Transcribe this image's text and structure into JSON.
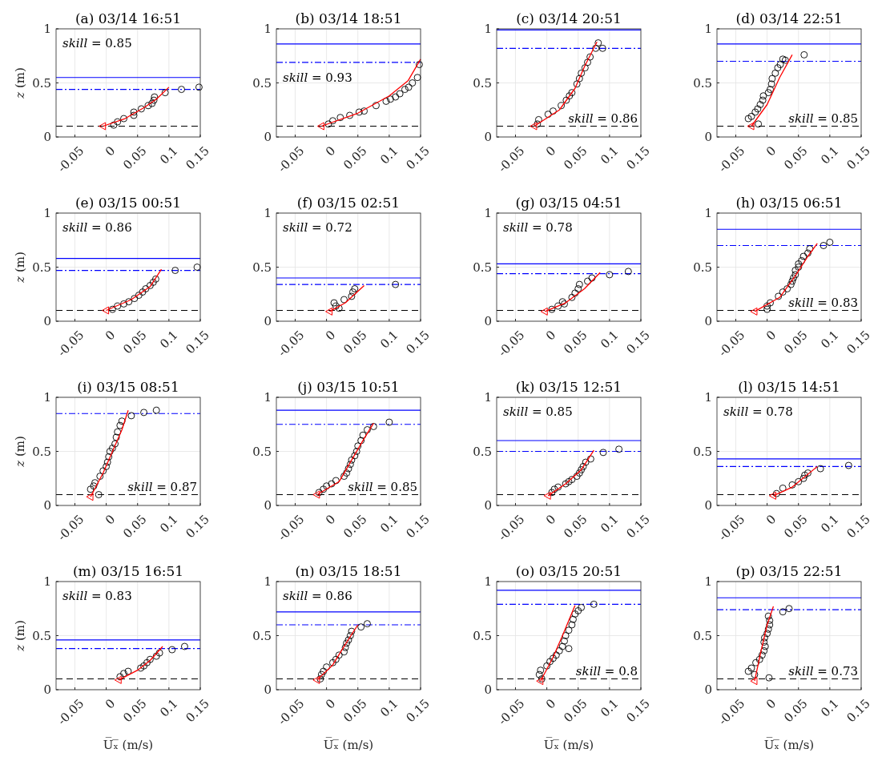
{
  "chart_data": [
    {
      "type": "scatter",
      "title": "(a) 03/14 16:51",
      "ylabel": "z (m)",
      "xlim": [
        -0.08,
        0.15
      ],
      "xticks": [
        -0.05,
        0,
        0.05,
        0.1,
        0.15
      ],
      "ylim": [
        0,
        1
      ],
      "yticks": [
        0,
        0.5,
        1
      ],
      "grid": true,
      "annotations": [
        "skill = 0.85"
      ],
      "ref_lines": [
        {
          "axis": "y",
          "value": 0.55,
          "color": "#0000ff",
          "line_style": "solid"
        },
        {
          "axis": "y",
          "value": 0.44,
          "color": "#0000ff",
          "line_style": "dashdot"
        },
        {
          "axis": "y",
          "value": 0.1,
          "color": "#000000",
          "line_style": "dashed"
        }
      ],
      "series": [
        {
          "type": "scatter",
          "marker": "circle",
          "color": "#000000",
          "x": [
            0.012,
            0.018,
            0.028,
            0.044,
            0.044,
            0.056,
            0.067,
            0.073,
            0.076,
            0.077,
            0.094,
            0.12,
            0.148
          ],
          "values": [
            0.11,
            0.14,
            0.17,
            0.2,
            0.23,
            0.26,
            0.29,
            0.31,
            0.34,
            0.37,
            0.41,
            0.44,
            0.46
          ]
        },
        {
          "type": "line",
          "color": "#ff0000",
          "x": [
            -0.005,
            0.03,
            0.06,
            0.08,
            0.1
          ],
          "values": [
            0.1,
            0.17,
            0.27,
            0.35,
            0.46
          ]
        },
        {
          "type": "scatter",
          "marker": "triangle",
          "color": "#ff0000",
          "x": [
            -0.005
          ],
          "values": [
            0.1
          ]
        }
      ]
    },
    {
      "type": "scatter",
      "title": "(b) 03/14 18:51",
      "xlim": [
        -0.08,
        0.15
      ],
      "xticks": [
        -0.05,
        0,
        0.05,
        0.1,
        0.15
      ],
      "ylim": [
        0,
        1
      ],
      "yticks": [
        0,
        0.5,
        1
      ],
      "grid": true,
      "annotations": [
        "skill = 0.93"
      ],
      "ref_lines": [
        {
          "axis": "y",
          "value": 0.86,
          "color": "#0000ff",
          "line_style": "solid"
        },
        {
          "axis": "y",
          "value": 0.69,
          "color": "#0000ff",
          "line_style": "dashdot"
        },
        {
          "axis": "y",
          "value": 0.1,
          "color": "#000000",
          "line_style": "dashed"
        }
      ],
      "series": [
        {
          "type": "scatter",
          "marker": "circle",
          "color": "#000000",
          "x": [
            0.003,
            0.01,
            0.022,
            0.037,
            0.052,
            0.06,
            0.079,
            0.095,
            0.102,
            0.11,
            0.117,
            0.125,
            0.131,
            0.137,
            0.145,
            0.148
          ],
          "values": [
            0.12,
            0.15,
            0.18,
            0.2,
            0.23,
            0.24,
            0.29,
            0.33,
            0.35,
            0.37,
            0.4,
            0.44,
            0.46,
            0.5,
            0.55,
            0.67
          ]
        },
        {
          "type": "line",
          "color": "#ff0000",
          "x": [
            -0.008,
            0.05,
            0.1,
            0.13,
            0.15
          ],
          "values": [
            0.1,
            0.22,
            0.38,
            0.52,
            0.72
          ]
        },
        {
          "type": "scatter",
          "marker": "triangle",
          "color": "#ff0000",
          "x": [
            -0.008
          ],
          "values": [
            0.1
          ]
        }
      ]
    },
    {
      "type": "scatter",
      "title": "(c) 03/14 20:51",
      "xlim": [
        -0.08,
        0.15
      ],
      "xticks": [
        -0.05,
        0,
        0.05,
        0.1,
        0.15
      ],
      "ylim": [
        0,
        1
      ],
      "yticks": [
        0,
        0.5,
        1
      ],
      "grid": true,
      "annotations": [
        "skill = 0.86"
      ],
      "ref_lines": [
        {
          "axis": "y",
          "value": 0.99,
          "color": "#0000ff",
          "line_style": "solid"
        },
        {
          "axis": "y",
          "value": 0.82,
          "color": "#0000ff",
          "line_style": "dashdot"
        },
        {
          "axis": "y",
          "value": 0.1,
          "color": "#000000",
          "line_style": "dashed"
        }
      ],
      "series": [
        {
          "type": "scatter",
          "marker": "circle",
          "color": "#000000",
          "x": [
            -0.015,
            -0.013,
            0.002,
            0.01,
            0.023,
            0.031,
            0.036,
            0.04,
            0.048,
            0.052,
            0.055,
            0.061,
            0.065,
            0.069,
            0.078,
            0.082,
            0.089
          ],
          "values": [
            0.12,
            0.16,
            0.21,
            0.24,
            0.29,
            0.34,
            0.38,
            0.41,
            0.49,
            0.54,
            0.59,
            0.64,
            0.69,
            0.74,
            0.82,
            0.87,
            0.82
          ]
        },
        {
          "type": "line",
          "color": "#ff0000",
          "x": [
            -0.02,
            0.02,
            0.045,
            0.06,
            0.08
          ],
          "values": [
            0.1,
            0.25,
            0.45,
            0.65,
            0.88
          ]
        },
        {
          "type": "scatter",
          "marker": "triangle",
          "color": "#ff0000",
          "x": [
            -0.02
          ],
          "values": [
            0.1
          ]
        }
      ]
    },
    {
      "type": "scatter",
      "title": "(d) 03/14 22:51",
      "xlim": [
        -0.08,
        0.15
      ],
      "xticks": [
        -0.05,
        0,
        0.05,
        0.1,
        0.15
      ],
      "ylim": [
        0,
        1
      ],
      "yticks": [
        0,
        0.5,
        1
      ],
      "grid": true,
      "annotations": [
        "skill = 0.85"
      ],
      "ref_lines": [
        {
          "axis": "y",
          "value": 0.86,
          "color": "#0000ff",
          "line_style": "solid"
        },
        {
          "axis": "y",
          "value": 0.7,
          "color": "#0000ff",
          "line_style": "dashdot"
        },
        {
          "axis": "y",
          "value": 0.1,
          "color": "#000000",
          "line_style": "dashed"
        }
      ],
      "series": [
        {
          "type": "scatter",
          "marker": "circle",
          "color": "#000000",
          "x": [
            -0.03,
            -0.025,
            -0.019,
            -0.015,
            -0.011,
            -0.007,
            -0.006,
            0.002,
            0.005,
            0.007,
            0.008,
            0.013,
            0.017,
            0.021,
            0.025,
            0.029,
            0.059,
            -0.014
          ],
          "values": [
            0.17,
            0.19,
            0.23,
            0.26,
            0.3,
            0.34,
            0.38,
            0.41,
            0.44,
            0.49,
            0.54,
            0.59,
            0.64,
            0.67,
            0.72,
            0.71,
            0.76,
            0.12
          ]
        },
        {
          "type": "line",
          "color": "#ff0000",
          "x": [
            -0.025,
            0,
            0.02,
            0.04
          ],
          "values": [
            0.1,
            0.3,
            0.55,
            0.76
          ]
        },
        {
          "type": "scatter",
          "marker": "triangle",
          "color": "#ff0000",
          "x": [
            -0.025
          ],
          "values": [
            0.1
          ]
        }
      ]
    },
    {
      "type": "scatter",
      "title": "(e) 03/15 00:51",
      "ylabel": "z (m)",
      "xlim": [
        -0.08,
        0.15
      ],
      "xticks": [
        -0.05,
        0,
        0.05,
        0.1,
        0.15
      ],
      "ylim": [
        0,
        1
      ],
      "yticks": [
        0,
        0.5,
        1
      ],
      "grid": true,
      "annotations": [
        "skill = 0.86"
      ],
      "ref_lines": [
        {
          "axis": "y",
          "value": 0.58,
          "color": "#0000ff",
          "line_style": "solid"
        },
        {
          "axis": "y",
          "value": 0.47,
          "color": "#0000ff",
          "line_style": "dashdot"
        },
        {
          "axis": "y",
          "value": 0.1,
          "color": "#000000",
          "line_style": "dashed"
        }
      ],
      "series": [
        {
          "type": "scatter",
          "marker": "circle",
          "color": "#000000",
          "x": [
            0.01,
            0.018,
            0.028,
            0.036,
            0.045,
            0.052,
            0.058,
            0.063,
            0.07,
            0.075,
            0.079,
            0.11,
            0.145
          ],
          "values": [
            0.11,
            0.14,
            0.16,
            0.18,
            0.21,
            0.24,
            0.27,
            0.3,
            0.33,
            0.36,
            0.39,
            0.47,
            0.5
          ]
        },
        {
          "type": "line",
          "color": "#ff0000",
          "x": [
            0,
            0.04,
            0.07,
            0.088
          ],
          "values": [
            0.1,
            0.2,
            0.32,
            0.48
          ]
        },
        {
          "type": "scatter",
          "marker": "triangle",
          "color": "#ff0000",
          "x": [
            0
          ],
          "values": [
            0.1
          ]
        }
      ]
    },
    {
      "type": "scatter",
      "title": "(f) 03/15 02:51",
      "xlim": [
        -0.08,
        0.15
      ],
      "xticks": [
        -0.05,
        0,
        0.05,
        0.1,
        0.15
      ],
      "ylim": [
        0,
        1
      ],
      "yticks": [
        0,
        0.5,
        1
      ],
      "grid": true,
      "annotations": [
        "skill = 0.72"
      ],
      "ref_lines": [
        {
          "axis": "y",
          "value": 0.4,
          "color": "#0000ff",
          "line_style": "solid"
        },
        {
          "axis": "y",
          "value": 0.34,
          "color": "#0000ff",
          "line_style": "dashdot"
        },
        {
          "axis": "y",
          "value": 0.1,
          "color": "#000000",
          "line_style": "dashed"
        }
      ],
      "series": [
        {
          "type": "scatter",
          "marker": "circle",
          "color": "#000000",
          "x": [
            0.012,
            0.015,
            0.02,
            0.028,
            0.04,
            0.042,
            0.045,
            0.11
          ],
          "values": [
            0.17,
            0.14,
            0.12,
            0.2,
            0.23,
            0.27,
            0.3,
            0.34
          ]
        },
        {
          "type": "line",
          "color": "#ff0000",
          "x": [
            0.005,
            0.03,
            0.06
          ],
          "values": [
            0.09,
            0.17,
            0.33
          ]
        },
        {
          "type": "scatter",
          "marker": "triangle",
          "color": "#ff0000",
          "x": [
            0.005
          ],
          "values": [
            0.09
          ]
        }
      ]
    },
    {
      "type": "scatter",
      "title": "(g) 03/15 04:51",
      "xlim": [
        -0.08,
        0.15
      ],
      "xticks": [
        -0.05,
        0,
        0.05,
        0.1,
        0.15
      ],
      "ylim": [
        0,
        1
      ],
      "yticks": [
        0,
        0.5,
        1
      ],
      "grid": true,
      "annotations": [
        "skill = 0.78"
      ],
      "ref_lines": [
        {
          "axis": "y",
          "value": 0.53,
          "color": "#0000ff",
          "line_style": "solid"
        },
        {
          "axis": "y",
          "value": 0.44,
          "color": "#0000ff",
          "line_style": "dashdot"
        },
        {
          "axis": "y",
          "value": 0.1,
          "color": "#000000",
          "line_style": "dashed"
        }
      ],
      "series": [
        {
          "type": "scatter",
          "marker": "circle",
          "color": "#000000",
          "x": [
            0.008,
            0.018,
            0.025,
            0.028,
            0.04,
            0.045,
            0.05,
            0.052,
            0.065,
            0.072,
            0.1,
            0.13
          ],
          "values": [
            0.11,
            0.14,
            0.18,
            0.16,
            0.22,
            0.26,
            0.3,
            0.34,
            0.37,
            0.4,
            0.43,
            0.46
          ]
        },
        {
          "type": "line",
          "color": "#ff0000",
          "x": [
            -0.003,
            0.03,
            0.06,
            0.085
          ],
          "values": [
            0.09,
            0.17,
            0.3,
            0.45
          ]
        },
        {
          "type": "scatter",
          "marker": "triangle",
          "color": "#ff0000",
          "x": [
            -0.003
          ],
          "values": [
            0.09
          ]
        }
      ]
    },
    {
      "type": "scatter",
      "title": "(h) 03/15 06:51",
      "xlim": [
        -0.08,
        0.15
      ],
      "xticks": [
        -0.05,
        0,
        0.05,
        0.1,
        0.15
      ],
      "ylim": [
        0,
        1
      ],
      "yticks": [
        0,
        0.5,
        1
      ],
      "grid": true,
      "annotations": [
        "skill = 0.83"
      ],
      "ref_lines": [
        {
          "axis": "y",
          "value": 0.85,
          "color": "#0000ff",
          "line_style": "solid"
        },
        {
          "axis": "y",
          "value": 0.7,
          "color": "#0000ff",
          "line_style": "dashdot"
        },
        {
          "axis": "y",
          "value": 0.1,
          "color": "#000000",
          "line_style": "dashed"
        }
      ],
      "series": [
        {
          "type": "scatter",
          "marker": "circle",
          "color": "#000000",
          "x": [
            0,
            0,
            0.005,
            0.018,
            0.025,
            0.032,
            0.038,
            0.04,
            0.042,
            0.045,
            0.045,
            0.05,
            0.05,
            0.055,
            0.058,
            0.065,
            0.068,
            0.09,
            0.1
          ],
          "values": [
            0.11,
            0.14,
            0.17,
            0.23,
            0.27,
            0.3,
            0.34,
            0.37,
            0.4,
            0.43,
            0.47,
            0.5,
            0.53,
            0.56,
            0.6,
            0.63,
            0.67,
            0.7,
            0.73
          ]
        },
        {
          "type": "line",
          "color": "#ff0000",
          "x": [
            -0.02,
            0.02,
            0.045,
            0.065,
            0.08
          ],
          "values": [
            0.09,
            0.22,
            0.42,
            0.6,
            0.72
          ]
        },
        {
          "type": "scatter",
          "marker": "triangle",
          "color": "#ff0000",
          "x": [
            -0.02
          ],
          "values": [
            0.09
          ]
        }
      ]
    },
    {
      "type": "scatter",
      "title": "(i) 03/15 08:51",
      "ylabel": "z (m)",
      "xlim": [
        -0.08,
        0.15
      ],
      "xticks": [
        -0.05,
        0,
        0.05,
        0.1,
        0.15
      ],
      "ylim": [
        0,
        1
      ],
      "yticks": [
        0,
        0.5,
        1
      ],
      "grid": true,
      "annotations": [
        "skill = 0.87"
      ],
      "ref_lines": [
        {
          "axis": "y",
          "value": 0.85,
          "color": "#0000ff",
          "line_style": "dashdot"
        },
        {
          "axis": "y",
          "value": 0.1,
          "color": "#000000",
          "line_style": "dashed"
        }
      ],
      "series": [
        {
          "type": "scatter",
          "marker": "circle",
          "color": "#000000",
          "x": [
            -0.025,
            -0.02,
            -0.018,
            -0.012,
            -0.01,
            -0.005,
            0,
            0.002,
            0.004,
            0.006,
            0.01,
            0.014,
            0.016,
            0.018,
            0.022,
            0.025,
            0.04,
            0.06,
            0.08
          ],
          "values": [
            0.15,
            0.18,
            0.21,
            0.1,
            0.27,
            0.32,
            0.36,
            0.4,
            0.45,
            0.5,
            0.53,
            0.57,
            0.63,
            0.68,
            0.74,
            0.78,
            0.83,
            0.86,
            0.88
          ]
        },
        {
          "type": "line",
          "color": "#ff0000",
          "x": [
            -0.025,
            -0.005,
            0.01,
            0.025,
            0.035
          ],
          "values": [
            0.08,
            0.3,
            0.5,
            0.7,
            0.88
          ]
        },
        {
          "type": "scatter",
          "marker": "triangle",
          "color": "#ff0000",
          "x": [
            -0.025
          ],
          "values": [
            0.08
          ]
        }
      ]
    },
    {
      "type": "scatter",
      "title": "(j) 03/15 10:51",
      "xlim": [
        -0.08,
        0.15
      ],
      "xticks": [
        -0.05,
        0,
        0.05,
        0.1,
        0.15
      ],
      "ylim": [
        0,
        1
      ],
      "yticks": [
        0,
        0.5,
        1
      ],
      "grid": true,
      "annotations": [
        "skill = 0.85"
      ],
      "ref_lines": [
        {
          "axis": "y",
          "value": 0.88,
          "color": "#0000ff",
          "line_style": "solid"
        },
        {
          "axis": "y",
          "value": 0.75,
          "color": "#0000ff",
          "line_style": "dashdot"
        },
        {
          "axis": "y",
          "value": 0.1,
          "color": "#000000",
          "line_style": "dashed"
        }
      ],
      "series": [
        {
          "type": "scatter",
          "marker": "circle",
          "color": "#000000",
          "x": [
            -0.012,
            -0.005,
            0,
            0.008,
            0.015,
            0.028,
            0.032,
            0.035,
            0.038,
            0.04,
            0.045,
            0.048,
            0.05,
            0.055,
            0.058,
            0.065,
            0.075,
            0.1
          ],
          "values": [
            0.12,
            0.15,
            0.18,
            0.2,
            0.23,
            0.27,
            0.3,
            0.34,
            0.38,
            0.42,
            0.46,
            0.5,
            0.55,
            0.6,
            0.65,
            0.7,
            0.73,
            0.77
          ]
        },
        {
          "type": "line",
          "color": "#ff0000",
          "x": [
            -0.015,
            0.02,
            0.04,
            0.06,
            0.075
          ],
          "values": [
            0.1,
            0.22,
            0.42,
            0.62,
            0.76
          ]
        },
        {
          "type": "scatter",
          "marker": "triangle",
          "color": "#ff0000",
          "x": [
            -0.015
          ],
          "values": [
            0.1
          ]
        }
      ]
    },
    {
      "type": "scatter",
      "title": "(k) 03/15 12:51",
      "xlim": [
        -0.08,
        0.15
      ],
      "xticks": [
        -0.05,
        0,
        0.05,
        0.1,
        0.15
      ],
      "ylim": [
        0,
        1
      ],
      "yticks": [
        0,
        0.5,
        1
      ],
      "grid": true,
      "annotations": [
        "skill = 0.85"
      ],
      "ref_lines": [
        {
          "axis": "y",
          "value": 0.6,
          "color": "#0000ff",
          "line_style": "solid"
        },
        {
          "axis": "y",
          "value": 0.5,
          "color": "#0000ff",
          "line_style": "dashdot"
        },
        {
          "axis": "y",
          "value": 0.1,
          "color": "#000000",
          "line_style": "dashed"
        }
      ],
      "series": [
        {
          "type": "scatter",
          "marker": "circle",
          "color": "#000000",
          "x": [
            0.008,
            0.012,
            0.018,
            0.03,
            0.035,
            0.04,
            0.048,
            0.052,
            0.055,
            0.058,
            0.062,
            0.07,
            0.09,
            0.115
          ],
          "values": [
            0.12,
            0.15,
            0.17,
            0.2,
            0.22,
            0.24,
            0.27,
            0.3,
            0.33,
            0.36,
            0.4,
            0.43,
            0.49,
            0.52
          ]
        },
        {
          "type": "line",
          "color": "#ff0000",
          "x": [
            0.002,
            0.03,
            0.055,
            0.075
          ],
          "values": [
            0.09,
            0.2,
            0.33,
            0.51
          ]
        },
        {
          "type": "scatter",
          "marker": "triangle",
          "color": "#ff0000",
          "x": [
            0.002
          ],
          "values": [
            0.09
          ]
        }
      ]
    },
    {
      "type": "scatter",
      "title": "(l) 03/15 14:51",
      "xlim": [
        -0.08,
        0.15
      ],
      "xticks": [
        -0.05,
        0,
        0.05,
        0.1,
        0.15
      ],
      "ylim": [
        0,
        1
      ],
      "yticks": [
        0,
        0.5,
        1
      ],
      "grid": true,
      "annotations": [
        "skill = 0.78"
      ],
      "ref_lines": [
        {
          "axis": "y",
          "value": 0.43,
          "color": "#0000ff",
          "line_style": "solid"
        },
        {
          "axis": "y",
          "value": 0.36,
          "color": "#0000ff",
          "line_style": "dashdot"
        },
        {
          "axis": "y",
          "value": 0.1,
          "color": "#000000",
          "line_style": "dashed"
        }
      ],
      "series": [
        {
          "type": "scatter",
          "marker": "circle",
          "color": "#000000",
          "x": [
            0.015,
            0.025,
            0.04,
            0.05,
            0.058,
            0.06,
            0.065,
            0.085,
            0.13
          ],
          "values": [
            0.11,
            0.16,
            0.19,
            0.22,
            0.25,
            0.28,
            0.3,
            0.34,
            0.37
          ]
        },
        {
          "type": "line",
          "color": "#ff0000",
          "x": [
            0.01,
            0.04,
            0.08
          ],
          "values": [
            0.09,
            0.17,
            0.36
          ]
        },
        {
          "type": "scatter",
          "marker": "triangle",
          "color": "#ff0000",
          "x": [
            0.01
          ],
          "values": [
            0.09
          ]
        }
      ]
    },
    {
      "type": "scatter",
      "title": "(m) 03/15 16:51",
      "ylabel": "z (m)",
      "xlabel": "U̅ₓ̅ (m/s)",
      "xlim": [
        -0.08,
        0.15
      ],
      "xticks": [
        -0.05,
        0,
        0.05,
        0.1,
        0.15
      ],
      "ylim": [
        0,
        1
      ],
      "yticks": [
        0,
        0.5,
        1
      ],
      "grid": true,
      "annotations": [
        "skill = 0.83"
      ],
      "ref_lines": [
        {
          "axis": "y",
          "value": 0.46,
          "color": "#0000ff",
          "line_style": "solid"
        },
        {
          "axis": "y",
          "value": 0.38,
          "color": "#0000ff",
          "line_style": "dashdot"
        },
        {
          "axis": "y",
          "value": 0.1,
          "color": "#000000",
          "line_style": "dashed"
        }
      ],
      "series": [
        {
          "type": "scatter",
          "marker": "circle",
          "color": "#000000",
          "x": [
            0.022,
            0.028,
            0.035,
            0.055,
            0.06,
            0.065,
            0.07,
            0.08,
            0.085,
            0.105,
            0.125
          ],
          "values": [
            0.12,
            0.15,
            0.17,
            0.2,
            0.22,
            0.25,
            0.28,
            0.31,
            0.34,
            0.37,
            0.4
          ]
        },
        {
          "type": "line",
          "color": "#ff0000",
          "x": [
            0.02,
            0.05,
            0.07,
            0.09
          ],
          "values": [
            0.09,
            0.18,
            0.27,
            0.4
          ]
        },
        {
          "type": "scatter",
          "marker": "triangle",
          "color": "#ff0000",
          "x": [
            0.02
          ],
          "values": [
            0.09
          ]
        }
      ]
    },
    {
      "type": "scatter",
      "title": "(n) 03/15 18:51",
      "xlabel": "U̅ₓ̅ (m/s)",
      "xlim": [
        -0.08,
        0.15
      ],
      "xticks": [
        -0.05,
        0,
        0.05,
        0.1,
        0.15
      ],
      "ylim": [
        0,
        1
      ],
      "yticks": [
        0,
        0.5,
        1
      ],
      "grid": true,
      "annotations": [
        "skill = 0.86"
      ],
      "ref_lines": [
        {
          "axis": "y",
          "value": 0.72,
          "color": "#0000ff",
          "line_style": "solid"
        },
        {
          "axis": "y",
          "value": 0.6,
          "color": "#0000ff",
          "line_style": "dashdot"
        },
        {
          "axis": "y",
          "value": 0.1,
          "color": "#000000",
          "line_style": "dashed"
        }
      ],
      "series": [
        {
          "type": "scatter",
          "marker": "circle",
          "color": "#000000",
          "x": [
            -0.01,
            -0.008,
            -0.005,
            0,
            0.01,
            0.015,
            0.02,
            0.028,
            0.03,
            0.032,
            0.035,
            0.038,
            0.04,
            0.055,
            0.065
          ],
          "values": [
            0.1,
            0.14,
            0.17,
            0.21,
            0.25,
            0.28,
            0.32,
            0.35,
            0.39,
            0.43,
            0.46,
            0.5,
            0.54,
            0.58,
            0.61
          ]
        },
        {
          "type": "line",
          "color": "#ff0000",
          "x": [
            -0.015,
            0.01,
            0.03,
            0.05
          ],
          "values": [
            0.09,
            0.23,
            0.42,
            0.6
          ]
        },
        {
          "type": "scatter",
          "marker": "triangle",
          "color": "#ff0000",
          "x": [
            -0.015
          ],
          "values": [
            0.09
          ]
        }
      ]
    },
    {
      "type": "scatter",
      "title": "(o) 03/15 20:51",
      "xlabel": "U̅ₓ̅ (m/s)",
      "xlim": [
        -0.08,
        0.15
      ],
      "xticks": [
        -0.05,
        0,
        0.05,
        0.1,
        0.15
      ],
      "ylim": [
        0,
        1
      ],
      "yticks": [
        0,
        0.5,
        1
      ],
      "grid": true,
      "annotations": [
        "skill = 0.8"
      ],
      "ref_lines": [
        {
          "axis": "y",
          "value": 0.92,
          "color": "#0000ff",
          "line_style": "solid"
        },
        {
          "axis": "y",
          "value": 0.79,
          "color": "#0000ff",
          "line_style": "dashdot"
        },
        {
          "axis": "y",
          "value": 0.1,
          "color": "#000000",
          "line_style": "dashed"
        }
      ],
      "series": [
        {
          "type": "scatter",
          "marker": "circle",
          "color": "#000000",
          "x": [
            -0.012,
            -0.01,
            -0.008,
            0,
            0.005,
            0.01,
            0.015,
            0.02,
            0.025,
            0.028,
            0.03,
            0.035,
            0.04,
            0.042,
            0.045,
            0.05,
            0.055,
            0.075,
            0.035
          ],
          "values": [
            0.14,
            0.18,
            0.1,
            0.22,
            0.26,
            0.29,
            0.32,
            0.36,
            0.4,
            0.45,
            0.5,
            0.55,
            0.6,
            0.65,
            0.7,
            0.73,
            0.76,
            0.79,
            0.38
          ]
        },
        {
          "type": "line",
          "color": "#ff0000",
          "x": [
            -0.01,
            0.01,
            0.025,
            0.045
          ],
          "values": [
            0.08,
            0.3,
            0.5,
            0.78
          ]
        },
        {
          "type": "scatter",
          "marker": "triangle",
          "color": "#ff0000",
          "x": [
            -0.01
          ],
          "values": [
            0.08
          ]
        }
      ]
    },
    {
      "type": "scatter",
      "title": "(p) 03/15 22:51",
      "xlabel": "U̅ₓ̅ (m/s)",
      "xlim": [
        -0.08,
        0.15
      ],
      "xticks": [
        -0.05,
        0,
        0.05,
        0.1,
        0.15
      ],
      "ylim": [
        0,
        1
      ],
      "yticks": [
        0,
        0.5,
        1
      ],
      "grid": true,
      "annotations": [
        "skill = 0.73"
      ],
      "ref_lines": [
        {
          "axis": "y",
          "value": 0.85,
          "color": "#0000ff",
          "line_style": "solid"
        },
        {
          "axis": "y",
          "value": 0.74,
          "color": "#0000ff",
          "line_style": "dashdot"
        },
        {
          "axis": "y",
          "value": 0.1,
          "color": "#000000",
          "line_style": "dashed"
        }
      ],
      "series": [
        {
          "type": "scatter",
          "marker": "circle",
          "color": "#000000",
          "x": [
            -0.03,
            -0.025,
            -0.02,
            -0.018,
            -0.012,
            -0.008,
            -0.005,
            -0.003,
            -0.005,
            -0.004,
            0,
            0.002,
            0.004,
            0.004,
            0.002,
            0.025,
            0.035,
            0.003
          ],
          "values": [
            0.17,
            0.2,
            0.14,
            0.25,
            0.28,
            0.32,
            0.36,
            0.4,
            0.44,
            0.48,
            0.52,
            0.56,
            0.6,
            0.64,
            0.68,
            0.72,
            0.75,
            0.11
          ]
        },
        {
          "type": "line",
          "color": "#ff0000",
          "x": [
            -0.02,
            -0.01,
            0,
            0.01
          ],
          "values": [
            0.08,
            0.35,
            0.6,
            0.77
          ]
        },
        {
          "type": "scatter",
          "marker": "triangle",
          "color": "#ff0000",
          "x": [
            -0.02
          ],
          "values": [
            0.08
          ]
        }
      ]
    }
  ]
}
